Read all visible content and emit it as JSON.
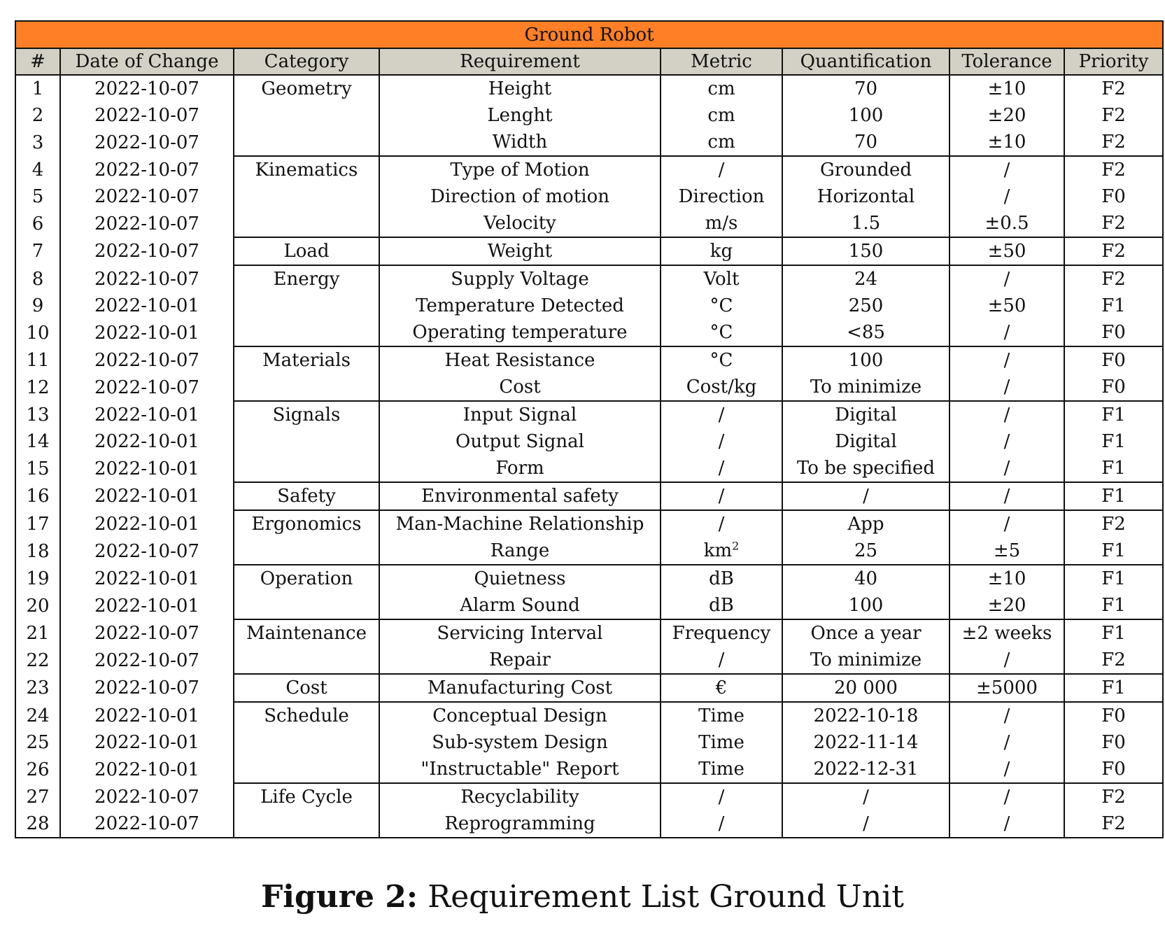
{
  "table": {
    "title": "Ground Robot",
    "headers": [
      "#",
      "Date of Change",
      "Category",
      "Requirement",
      "Metric",
      "Quantification",
      "Tolerance",
      "Priority"
    ],
    "rows": [
      {
        "num": "1",
        "date": "2022-10-07",
        "category": "Geometry",
        "requirement": "Height",
        "metric": "cm",
        "quantification": "70",
        "tolerance": "±10",
        "priority": "F2"
      },
      {
        "num": "2",
        "date": "2022-10-07",
        "category": "",
        "requirement": "Lenght",
        "metric": "cm",
        "quantification": "100",
        "tolerance": "±20",
        "priority": "F2"
      },
      {
        "num": "3",
        "date": "2022-10-07",
        "category": "",
        "requirement": "Width",
        "metric": "cm",
        "quantification": "70",
        "tolerance": "±10",
        "priority": "F2"
      },
      {
        "num": "4",
        "date": "2022-10-07",
        "category": "Kinematics",
        "requirement": "Type of Motion",
        "metric": "/",
        "quantification": "Grounded",
        "tolerance": "/",
        "priority": "F2"
      },
      {
        "num": "5",
        "date": "2022-10-07",
        "category": "",
        "requirement": "Direction of motion",
        "metric": "Direction",
        "quantification": "Horizontal",
        "tolerance": "/",
        "priority": "F0"
      },
      {
        "num": "6",
        "date": "2022-10-07",
        "category": "",
        "requirement": "Velocity",
        "metric": "m/s",
        "quantification": "1.5",
        "tolerance": "±0.5",
        "priority": "F2"
      },
      {
        "num": "7",
        "date": "2022-10-07",
        "category": "Load",
        "requirement": "Weight",
        "metric": "kg",
        "quantification": "150",
        "tolerance": "±50",
        "priority": "F2"
      },
      {
        "num": "8",
        "date": "2022-10-07",
        "category": "Energy",
        "requirement": "Supply Voltage",
        "metric": "Volt",
        "quantification": "24",
        "tolerance": "/",
        "priority": "F2"
      },
      {
        "num": "9",
        "date": "2022-10-01",
        "category": "",
        "requirement": "Temperature Detected",
        "metric": "°C",
        "quantification": "250",
        "tolerance": "±50",
        "priority": "F1"
      },
      {
        "num": "10",
        "date": "2022-10-01",
        "category": "",
        "requirement": "Operating temperature",
        "metric": "°C",
        "quantification": "<85",
        "tolerance": "/",
        "priority": "F0"
      },
      {
        "num": "11",
        "date": "2022-10-07",
        "category": "Materials",
        "requirement": "Heat Resistance",
        "metric": "°C",
        "quantification": "100",
        "tolerance": "/",
        "priority": "F0"
      },
      {
        "num": "12",
        "date": "2022-10-07",
        "category": "",
        "requirement": "Cost",
        "metric": "Cost/kg",
        "quantification": "To minimize",
        "tolerance": "/",
        "priority": "F0"
      },
      {
        "num": "13",
        "date": "2022-10-01",
        "category": "Signals",
        "requirement": "Input Signal",
        "metric": "/",
        "quantification": "Digital",
        "tolerance": "/",
        "priority": "F1"
      },
      {
        "num": "14",
        "date": "2022-10-01",
        "category": "",
        "requirement": "Output Signal",
        "metric": "/",
        "quantification": "Digital",
        "tolerance": "/",
        "priority": "F1"
      },
      {
        "num": "15",
        "date": "2022-10-01",
        "category": "",
        "requirement": "Form",
        "metric": "/",
        "quantification": "To be specified",
        "tolerance": "/",
        "priority": "F1"
      },
      {
        "num": "16",
        "date": "2022-10-01",
        "category": "Safety",
        "requirement": "Environmental safety",
        "metric": "/",
        "quantification": "/",
        "tolerance": "/",
        "priority": "F1"
      },
      {
        "num": "17",
        "date": "2022-10-01",
        "category": "Ergonomics",
        "requirement": "Man-Machine Relationship",
        "metric": "/",
        "quantification": "App",
        "tolerance": "/",
        "priority": "F2"
      },
      {
        "num": "18",
        "date": "2022-10-07",
        "category": "",
        "requirement": "Range",
        "metric": "km",
        "metric_sup": "2",
        "quantification": "25",
        "tolerance": "±5",
        "priority": "F1"
      },
      {
        "num": "19",
        "date": "2022-10-01",
        "category": "Operation",
        "requirement": "Quietness",
        "metric": "dB",
        "quantification": "40",
        "tolerance": "±10",
        "priority": "F1"
      },
      {
        "num": "20",
        "date": "2022-10-01",
        "category": "",
        "requirement": "Alarm Sound",
        "metric": "dB",
        "quantification": "100",
        "tolerance": "±20",
        "priority": "F1"
      },
      {
        "num": "21",
        "date": "2022-10-07",
        "category": "Maintenance",
        "requirement": "Servicing Interval",
        "metric": "Frequency",
        "quantification": "Once a year",
        "tolerance": "±2 weeks",
        "priority": "F1"
      },
      {
        "num": "22",
        "date": "2022-10-07",
        "category": "",
        "requirement": "Repair",
        "metric": "/",
        "quantification": "To minimize",
        "tolerance": "/",
        "priority": "F2"
      },
      {
        "num": "23",
        "date": "2022-10-07",
        "category": "Cost",
        "requirement": "Manufacturing Cost",
        "metric": "€",
        "quantification": "20 000",
        "tolerance": "±5000",
        "priority": "F1"
      },
      {
        "num": "24",
        "date": "2022-10-01",
        "category": "Schedule",
        "requirement": "Conceptual Design",
        "metric": "Time",
        "quantification": "2022-10-18",
        "tolerance": "/",
        "priority": "F0"
      },
      {
        "num": "25",
        "date": "2022-10-01",
        "category": "",
        "requirement": "Sub-system Design",
        "metric": "Time",
        "quantification": "2022-11-14",
        "tolerance": "/",
        "priority": "F0"
      },
      {
        "num": "26",
        "date": "2022-10-01",
        "category": "",
        "requirement": "\"Instructable\" Report",
        "metric": "Time",
        "quantification": "2022-12-31",
        "tolerance": "/",
        "priority": "F0"
      },
      {
        "num": "27",
        "date": "2022-10-07",
        "category": "Life Cycle",
        "requirement": "Recyclability",
        "metric": "/",
        "quantification": "/",
        "tolerance": "/",
        "priority": "F2"
      },
      {
        "num": "28",
        "date": "2022-10-07",
        "category": "",
        "requirement": "Reprogramming",
        "metric": "/",
        "quantification": "/",
        "tolerance": "/",
        "priority": "F2"
      }
    ]
  },
  "caption": {
    "label": "Figure 2:",
    "text": "Requirement List Ground Unit"
  }
}
